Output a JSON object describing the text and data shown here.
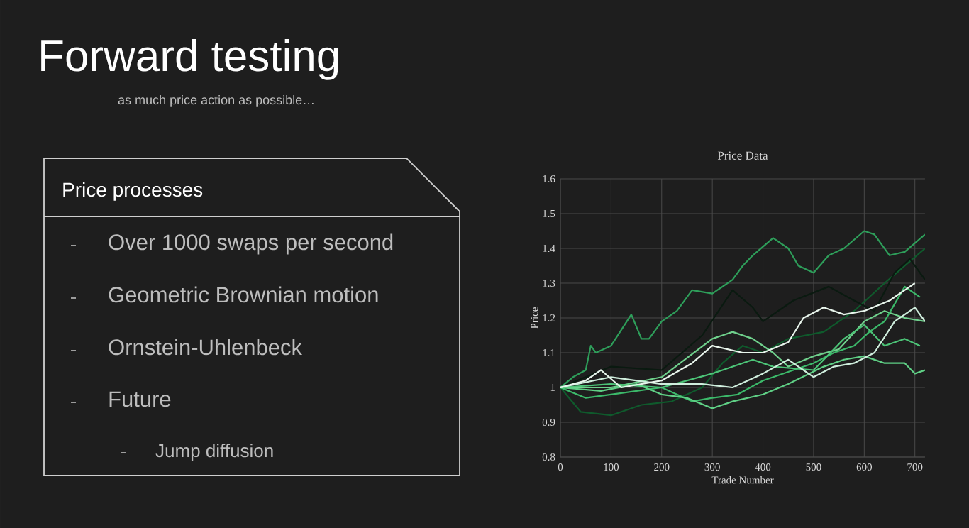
{
  "chart_data": [
    {
      "type": "other",
      "title": "Forward testing",
      "subtitle": "as much price action as possible…",
      "annotations": [
        "Price processes",
        "Over 1000 swaps per second",
        "Geometric Brownian motion",
        "Ornstein-Uhlenbeck",
        "Future",
        "Jump diffusion"
      ]
    },
    {
      "type": "line",
      "title": "Price Data",
      "xlabel": "Trade Number",
      "ylabel": "Price",
      "xlim": [
        0,
        720
      ],
      "ylim": [
        0.8,
        1.6
      ],
      "xticks": [
        0,
        100,
        200,
        300,
        400,
        500,
        600,
        700
      ],
      "yticks": [
        0.8,
        0.9,
        1,
        1.1,
        1.2,
        1.3,
        1.4,
        1.5,
        1.6
      ],
      "grid": true,
      "series": [
        {
          "color": "#0f5a2c",
          "x": [
            0,
            40,
            100,
            160,
            220,
            280,
            320,
            360,
            400,
            450,
            520,
            580,
            640,
            680,
            720
          ],
          "values": [
            1.0,
            0.93,
            0.92,
            0.95,
            0.96,
            1.0,
            1.07,
            1.12,
            1.1,
            1.14,
            1.16,
            1.22,
            1.3,
            1.35,
            1.4
          ]
        },
        {
          "color": "#0a1a10",
          "x": [
            0,
            100,
            200,
            280,
            340,
            380,
            400,
            460,
            530,
            580,
            620,
            660,
            690,
            720
          ],
          "values": [
            1.0,
            1.06,
            1.05,
            1.15,
            1.28,
            1.23,
            1.19,
            1.25,
            1.29,
            1.25,
            1.22,
            1.33,
            1.37,
            1.31
          ]
        },
        {
          "color": "#2e9e5a",
          "x": [
            0,
            25,
            50,
            60,
            70,
            100,
            140,
            160,
            175,
            200,
            230,
            260,
            300,
            340,
            360,
            380,
            420,
            450,
            470,
            500,
            530,
            560,
            600,
            620,
            650,
            680,
            720
          ],
          "values": [
            1.0,
            1.03,
            1.05,
            1.12,
            1.1,
            1.12,
            1.21,
            1.14,
            1.14,
            1.19,
            1.22,
            1.28,
            1.27,
            1.31,
            1.35,
            1.38,
            1.43,
            1.4,
            1.35,
            1.33,
            1.38,
            1.4,
            1.45,
            1.44,
            1.38,
            1.39,
            1.44
          ]
        },
        {
          "color": "#6fd08c",
          "x": [
            0,
            100,
            200,
            300,
            340,
            380,
            420,
            450,
            500,
            550,
            600,
            640,
            680,
            720
          ],
          "values": [
            1.0,
            1.0,
            1.03,
            1.14,
            1.16,
            1.14,
            1.1,
            1.06,
            1.09,
            1.11,
            1.19,
            1.22,
            1.2,
            1.19
          ]
        },
        {
          "color": "#3cb96a",
          "x": [
            0,
            50,
            100,
            200,
            260,
            300,
            350,
            400,
            460,
            500,
            540,
            580,
            610,
            640,
            680,
            710
          ],
          "values": [
            1.0,
            0.97,
            0.98,
            1.0,
            0.96,
            0.97,
            0.98,
            1.02,
            1.05,
            1.07,
            1.1,
            1.12,
            1.16,
            1.19,
            1.29,
            1.26
          ]
        },
        {
          "color": "#4cc477",
          "x": [
            0,
            100,
            200,
            300,
            380,
            420,
            500,
            560,
            600,
            640,
            680,
            710
          ],
          "values": [
            1.0,
            1.01,
            1.0,
            1.04,
            1.08,
            1.06,
            1.05,
            1.14,
            1.18,
            1.12,
            1.14,
            1.12
          ]
        },
        {
          "color": "#5fcf85",
          "x": [
            0,
            80,
            150,
            200,
            250,
            300,
            340,
            400,
            450,
            520,
            560,
            600,
            640,
            680,
            700,
            720
          ],
          "values": [
            1.0,
            0.99,
            1.01,
            0.98,
            0.97,
            0.94,
            0.96,
            0.98,
            1.01,
            1.06,
            1.08,
            1.09,
            1.07,
            1.07,
            1.04,
            1.05
          ]
        },
        {
          "color": "#cfeedd",
          "x": [
            0,
            100,
            200,
            280,
            340,
            400,
            450,
            500,
            540,
            580,
            620,
            660,
            700,
            720
          ],
          "values": [
            1.0,
            1.03,
            1.01,
            1.01,
            1.0,
            1.04,
            1.08,
            1.03,
            1.06,
            1.07,
            1.1,
            1.19,
            1.23,
            1.19
          ]
        },
        {
          "color": "#e8f5ec",
          "x": [
            0,
            50,
            80,
            120,
            200,
            260,
            300,
            360,
            400,
            450,
            480,
            520,
            560,
            600,
            650,
            700
          ],
          "values": [
            1.0,
            1.02,
            1.05,
            1.0,
            1.02,
            1.07,
            1.12,
            1.1,
            1.1,
            1.13,
            1.2,
            1.23,
            1.21,
            1.22,
            1.25,
            1.3
          ]
        }
      ]
    }
  ]
}
